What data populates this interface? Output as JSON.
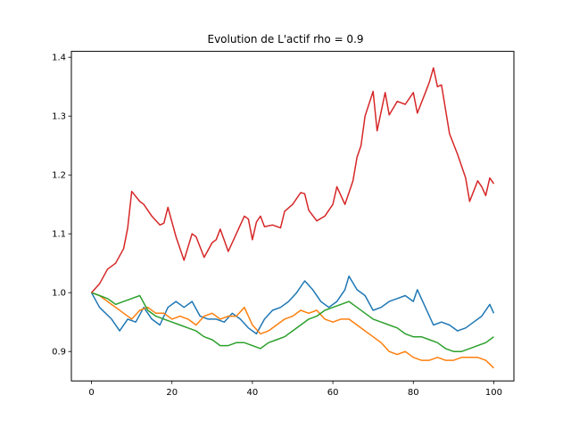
{
  "chart_data": {
    "type": "line",
    "title": "Evolution de L'actif rho = 0.9",
    "xlabel": "",
    "ylabel": "",
    "xlim": [
      -5,
      105
    ],
    "ylim": [
      0.85,
      1.41
    ],
    "grid": false,
    "legend": "none",
    "x_ticks": [
      0,
      20,
      40,
      60,
      80,
      100
    ],
    "x_tick_labels": [
      "0",
      "20",
      "40",
      "60",
      "80",
      "100"
    ],
    "y_ticks": [
      0.9,
      1.0,
      1.1,
      1.2,
      1.3,
      1.4
    ],
    "y_tick_labels": [
      "0.9",
      "1.0",
      "1.1",
      "1.2",
      "1.3",
      "1.4"
    ],
    "series": [
      {
        "color": "#1f77b4",
        "points": [
          [
            0,
            1.0
          ],
          [
            2,
            0.975
          ],
          [
            5,
            0.955
          ],
          [
            7,
            0.935
          ],
          [
            9,
            0.955
          ],
          [
            11,
            0.95
          ],
          [
            13,
            0.975
          ],
          [
            15,
            0.955
          ],
          [
            17,
            0.945
          ],
          [
            19,
            0.975
          ],
          [
            21,
            0.985
          ],
          [
            23,
            0.975
          ],
          [
            25,
            0.985
          ],
          [
            27,
            0.96
          ],
          [
            29,
            0.955
          ],
          [
            31,
            0.955
          ],
          [
            33,
            0.95
          ],
          [
            35,
            0.965
          ],
          [
            37,
            0.955
          ],
          [
            39,
            0.94
          ],
          [
            41,
            0.93
          ],
          [
            43,
            0.955
          ],
          [
            45,
            0.97
          ],
          [
            47,
            0.975
          ],
          [
            49,
            0.985
          ],
          [
            51,
            1.0
          ],
          [
            53,
            1.02
          ],
          [
            55,
            1.005
          ],
          [
            57,
            0.985
          ],
          [
            59,
            0.975
          ],
          [
            61,
            0.985
          ],
          [
            63,
            1.005
          ],
          [
            64,
            1.028
          ],
          [
            66,
            1.005
          ],
          [
            68,
            0.995
          ],
          [
            70,
            0.97
          ],
          [
            72,
            0.975
          ],
          [
            74,
            0.985
          ],
          [
            76,
            0.99
          ],
          [
            78,
            0.995
          ],
          [
            80,
            0.985
          ],
          [
            81,
            1.005
          ],
          [
            83,
            0.975
          ],
          [
            85,
            0.945
          ],
          [
            87,
            0.95
          ],
          [
            89,
            0.945
          ],
          [
            91,
            0.935
          ],
          [
            93,
            0.94
          ],
          [
            95,
            0.95
          ],
          [
            97,
            0.96
          ],
          [
            99,
            0.98
          ],
          [
            100,
            0.965
          ]
        ]
      },
      {
        "color": "#ff7f0e",
        "points": [
          [
            0,
            1.0
          ],
          [
            2,
            0.995
          ],
          [
            4,
            0.985
          ],
          [
            6,
            0.975
          ],
          [
            8,
            0.965
          ],
          [
            10,
            0.955
          ],
          [
            12,
            0.97
          ],
          [
            14,
            0.975
          ],
          [
            16,
            0.965
          ],
          [
            18,
            0.965
          ],
          [
            20,
            0.955
          ],
          [
            22,
            0.96
          ],
          [
            24,
            0.955
          ],
          [
            26,
            0.945
          ],
          [
            28,
            0.96
          ],
          [
            30,
            0.965
          ],
          [
            32,
            0.955
          ],
          [
            34,
            0.96
          ],
          [
            36,
            0.96
          ],
          [
            38,
            0.975
          ],
          [
            40,
            0.945
          ],
          [
            42,
            0.93
          ],
          [
            44,
            0.935
          ],
          [
            46,
            0.945
          ],
          [
            48,
            0.955
          ],
          [
            50,
            0.96
          ],
          [
            52,
            0.97
          ],
          [
            54,
            0.965
          ],
          [
            56,
            0.97
          ],
          [
            58,
            0.955
          ],
          [
            60,
            0.95
          ],
          [
            62,
            0.955
          ],
          [
            64,
            0.955
          ],
          [
            66,
            0.945
          ],
          [
            68,
            0.935
          ],
          [
            70,
            0.925
          ],
          [
            72,
            0.915
          ],
          [
            74,
            0.9
          ],
          [
            76,
            0.895
          ],
          [
            78,
            0.9
          ],
          [
            80,
            0.89
          ],
          [
            82,
            0.885
          ],
          [
            84,
            0.885
          ],
          [
            86,
            0.89
          ],
          [
            88,
            0.885
          ],
          [
            90,
            0.885
          ],
          [
            92,
            0.89
          ],
          [
            94,
            0.89
          ],
          [
            96,
            0.89
          ],
          [
            98,
            0.885
          ],
          [
            100,
            0.872
          ]
        ]
      },
      {
        "color": "#2ca02c",
        "points": [
          [
            0,
            1.0
          ],
          [
            2,
            0.995
          ],
          [
            4,
            0.99
          ],
          [
            6,
            0.98
          ],
          [
            8,
            0.985
          ],
          [
            10,
            0.99
          ],
          [
            12,
            0.995
          ],
          [
            14,
            0.97
          ],
          [
            16,
            0.96
          ],
          [
            18,
            0.955
          ],
          [
            20,
            0.95
          ],
          [
            22,
            0.945
          ],
          [
            24,
            0.94
          ],
          [
            26,
            0.935
          ],
          [
            28,
            0.925
          ],
          [
            30,
            0.92
          ],
          [
            32,
            0.91
          ],
          [
            34,
            0.91
          ],
          [
            36,
            0.915
          ],
          [
            38,
            0.915
          ],
          [
            40,
            0.91
          ],
          [
            42,
            0.905
          ],
          [
            44,
            0.915
          ],
          [
            46,
            0.92
          ],
          [
            48,
            0.925
          ],
          [
            50,
            0.935
          ],
          [
            52,
            0.945
          ],
          [
            54,
            0.955
          ],
          [
            56,
            0.96
          ],
          [
            58,
            0.97
          ],
          [
            60,
            0.975
          ],
          [
            62,
            0.98
          ],
          [
            64,
            0.985
          ],
          [
            66,
            0.975
          ],
          [
            68,
            0.965
          ],
          [
            70,
            0.955
          ],
          [
            72,
            0.95
          ],
          [
            74,
            0.945
          ],
          [
            76,
            0.94
          ],
          [
            78,
            0.93
          ],
          [
            80,
            0.925
          ],
          [
            82,
            0.925
          ],
          [
            84,
            0.92
          ],
          [
            86,
            0.915
          ],
          [
            88,
            0.905
          ],
          [
            90,
            0.9
          ],
          [
            92,
            0.9
          ],
          [
            94,
            0.905
          ],
          [
            96,
            0.91
          ],
          [
            98,
            0.915
          ],
          [
            100,
            0.925
          ]
        ]
      },
      {
        "color": "#d62728",
        "points": [
          [
            0,
            1.0
          ],
          [
            2,
            1.015
          ],
          [
            4,
            1.04
          ],
          [
            6,
            1.05
          ],
          [
            8,
            1.075
          ],
          [
            9,
            1.11
          ],
          [
            10,
            1.172
          ],
          [
            12,
            1.155
          ],
          [
            13,
            1.15
          ],
          [
            15,
            1.13
          ],
          [
            17,
            1.115
          ],
          [
            18,
            1.118
          ],
          [
            19,
            1.145
          ],
          [
            21,
            1.095
          ],
          [
            23,
            1.055
          ],
          [
            25,
            1.1
          ],
          [
            26,
            1.095
          ],
          [
            28,
            1.06
          ],
          [
            30,
            1.085
          ],
          [
            31,
            1.09
          ],
          [
            32,
            1.108
          ],
          [
            34,
            1.07
          ],
          [
            36,
            1.1
          ],
          [
            38,
            1.13
          ],
          [
            39,
            1.125
          ],
          [
            40,
            1.09
          ],
          [
            41,
            1.12
          ],
          [
            42,
            1.13
          ],
          [
            43,
            1.112
          ],
          [
            45,
            1.115
          ],
          [
            47,
            1.11
          ],
          [
            48,
            1.138
          ],
          [
            50,
            1.15
          ],
          [
            52,
            1.17
          ],
          [
            53,
            1.168
          ],
          [
            54,
            1.14
          ],
          [
            56,
            1.122
          ],
          [
            58,
            1.13
          ],
          [
            60,
            1.15
          ],
          [
            61,
            1.18
          ],
          [
            62,
            1.165
          ],
          [
            63,
            1.15
          ],
          [
            65,
            1.19
          ],
          [
            66,
            1.23
          ],
          [
            67,
            1.25
          ],
          [
            68,
            1.3
          ],
          [
            70,
            1.342
          ],
          [
            71,
            1.275
          ],
          [
            73,
            1.34
          ],
          [
            74,
            1.302
          ],
          [
            76,
            1.325
          ],
          [
            78,
            1.32
          ],
          [
            80,
            1.34
          ],
          [
            81,
            1.305
          ],
          [
            83,
            1.34
          ],
          [
            84,
            1.358
          ],
          [
            85,
            1.382
          ],
          [
            86,
            1.35
          ],
          [
            87,
            1.353
          ],
          [
            89,
            1.27
          ],
          [
            91,
            1.235
          ],
          [
            93,
            1.195
          ],
          [
            94,
            1.155
          ],
          [
            96,
            1.19
          ],
          [
            97,
            1.18
          ],
          [
            98,
            1.165
          ],
          [
            99,
            1.195
          ],
          [
            100,
            1.185
          ]
        ]
      }
    ]
  }
}
